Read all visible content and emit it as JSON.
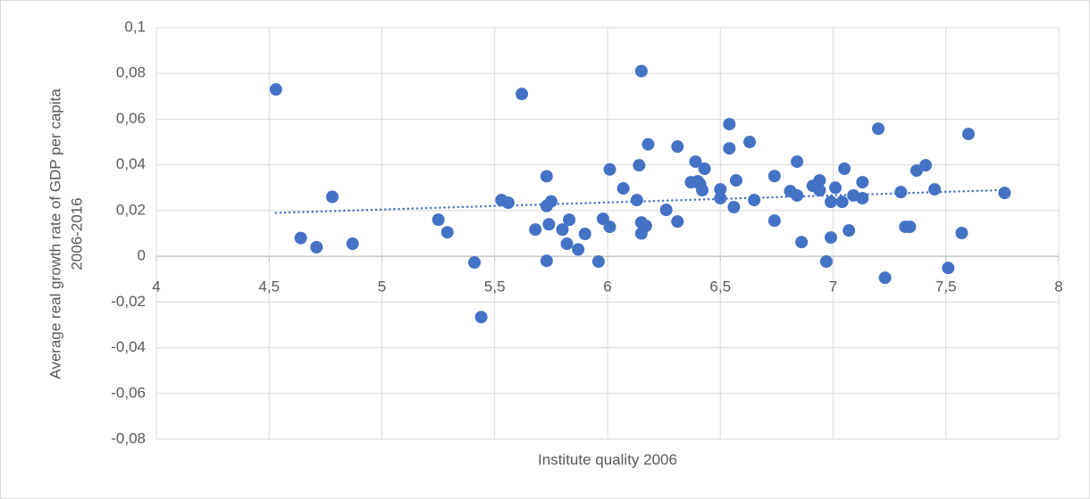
{
  "chart_data": {
    "type": "scatter",
    "xlabel": "Institute quality 2006",
    "ylabel": [
      "Average real growth rate of GDP per capita",
      "2006-2016"
    ],
    "color": "#4472c4",
    "x": [
      4.53,
      4.64,
      4.71,
      4.78,
      4.87,
      5.25,
      5.29,
      5.41,
      5.44,
      5.53,
      5.56,
      5.62,
      5.68,
      5.73,
      5.73,
      5.73,
      5.74,
      5.75,
      5.8,
      5.82,
      5.83,
      5.87,
      5.9,
      5.96,
      5.98,
      6.01,
      6.01,
      6.07,
      6.13,
      6.14,
      6.15,
      6.15,
      6.15,
      6.17,
      6.18,
      6.26,
      6.31,
      6.31,
      6.37,
      6.39,
      6.4,
      6.41,
      6.42,
      6.43,
      6.5,
      6.5,
      6.54,
      6.54,
      6.56,
      6.57,
      6.63,
      6.65,
      6.74,
      6.74,
      6.81,
      6.84,
      6.84,
      6.86,
      6.91,
      6.94,
      6.94,
      6.97,
      6.99,
      6.99,
      7.01,
      7.05,
      7.04,
      7.07,
      7.09,
      7.13,
      7.13,
      7.2,
      7.23,
      7.3,
      7.32,
      7.34,
      7.37,
      7.41,
      7.45,
      7.51,
      7.57,
      7.6,
      7.76
    ],
    "values": [
      0.073,
      0.008,
      0.004,
      0.026,
      0.0055,
      0.016,
      0.0105,
      -0.0027,
      -0.0266,
      0.0246,
      0.0234,
      0.071,
      0.0117,
      0.035,
      0.022,
      -0.002,
      0.014,
      0.024,
      0.0117,
      0.0055,
      0.016,
      0.003,
      0.0098,
      -0.0023,
      0.0164,
      0.038,
      0.0129,
      0.0297,
      0.0246,
      0.0398,
      0.081,
      0.01,
      0.0148,
      0.0133,
      0.049,
      0.0203,
      0.048,
      0.0152,
      0.0324,
      0.0414,
      0.0328,
      0.0316,
      0.0289,
      0.0383,
      0.0293,
      0.0254,
      0.0578,
      0.0472,
      0.0215,
      0.0332,
      0.05,
      0.0246,
      0.0351,
      0.0156,
      0.0285,
      0.0414,
      0.0266,
      0.0062,
      0.0308,
      0.0332,
      0.0289,
      -0.0023,
      0.0238,
      0.0082,
      0.03,
      0.0383,
      0.0238,
      0.0113,
      0.0266,
      0.0324,
      0.0254,
      0.0558,
      -0.0094,
      0.0281,
      0.0129,
      0.0129,
      0.0375,
      0.0398,
      0.0293,
      -0.0051,
      0.0102,
      0.0535,
      0.0277
    ],
    "trendline": {
      "color": "#4472c4",
      "x": [
        4.53,
        7.76
      ],
      "values": [
        0.019,
        0.029
      ]
    },
    "xlim": [
      4,
      8
    ],
    "xticks": [
      4,
      {
        "value": 4.5,
        "label": "4,5"
      },
      5,
      {
        "value": 5.5,
        "label": "5,5"
      },
      6,
      {
        "value": 6.5,
        "label": "6,5"
      },
      7,
      {
        "value": 7.5,
        "label": "7,5"
      },
      8
    ],
    "ylim": [
      -0.08,
      0.1
    ],
    "yticks": [
      {
        "value": -0.08,
        "label": "-0,08"
      },
      {
        "value": -0.06,
        "label": "-0,06"
      },
      {
        "value": -0.04,
        "label": "-0,04"
      },
      {
        "value": -0.02,
        "label": "-0,02"
      },
      0,
      {
        "value": 0.02,
        "label": "0,02"
      },
      {
        "value": 0.04,
        "label": "0,04"
      },
      {
        "value": 0.06,
        "label": "0,06"
      },
      {
        "value": 0.08,
        "label": "0,08"
      },
      {
        "value": 0.1,
        "label": "0,1"
      }
    ],
    "grid": true
  }
}
